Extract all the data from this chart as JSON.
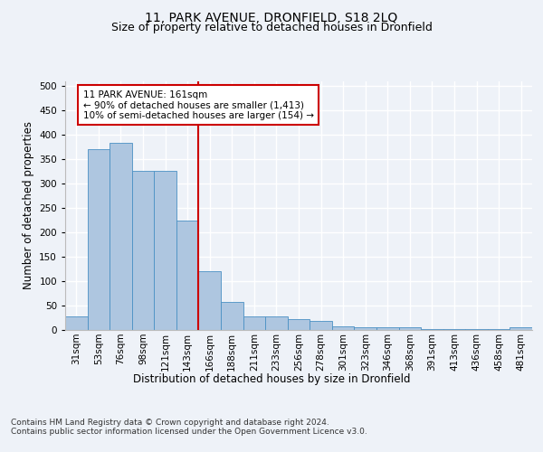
{
  "title": "11, PARK AVENUE, DRONFIELD, S18 2LQ",
  "subtitle": "Size of property relative to detached houses in Dronfield",
  "xlabel": "Distribution of detached houses by size in Dronfield",
  "ylabel": "Number of detached properties",
  "categories": [
    "31sqm",
    "53sqm",
    "76sqm",
    "98sqm",
    "121sqm",
    "143sqm",
    "166sqm",
    "188sqm",
    "211sqm",
    "233sqm",
    "256sqm",
    "278sqm",
    "301sqm",
    "323sqm",
    "346sqm",
    "368sqm",
    "391sqm",
    "413sqm",
    "436sqm",
    "458sqm",
    "481sqm"
  ],
  "values": [
    28,
    370,
    383,
    327,
    326,
    225,
    120,
    58,
    27,
    27,
    22,
    18,
    8,
    6,
    5,
    5,
    2,
    2,
    2,
    2,
    5
  ],
  "bar_color": "#aec6e0",
  "bar_edge_color": "#4a90c4",
  "vline_color": "#cc0000",
  "annotation_text": "11 PARK AVENUE: 161sqm\n← 90% of detached houses are smaller (1,413)\n10% of semi-detached houses are larger (154) →",
  "annotation_box_color": "white",
  "annotation_box_edge_color": "#cc0000",
  "footer": "Contains HM Land Registry data © Crown copyright and database right 2024.\nContains public sector information licensed under the Open Government Licence v3.0.",
  "ylim": [
    0,
    510
  ],
  "yticks": [
    0,
    50,
    100,
    150,
    200,
    250,
    300,
    350,
    400,
    450,
    500
  ],
  "background_color": "#eef2f8",
  "grid_color": "#ffffff",
  "title_fontsize": 10,
  "subtitle_fontsize": 9,
  "axis_label_fontsize": 8.5,
  "tick_fontsize": 7.5,
  "footer_fontsize": 6.5,
  "annotation_fontsize": 7.5
}
